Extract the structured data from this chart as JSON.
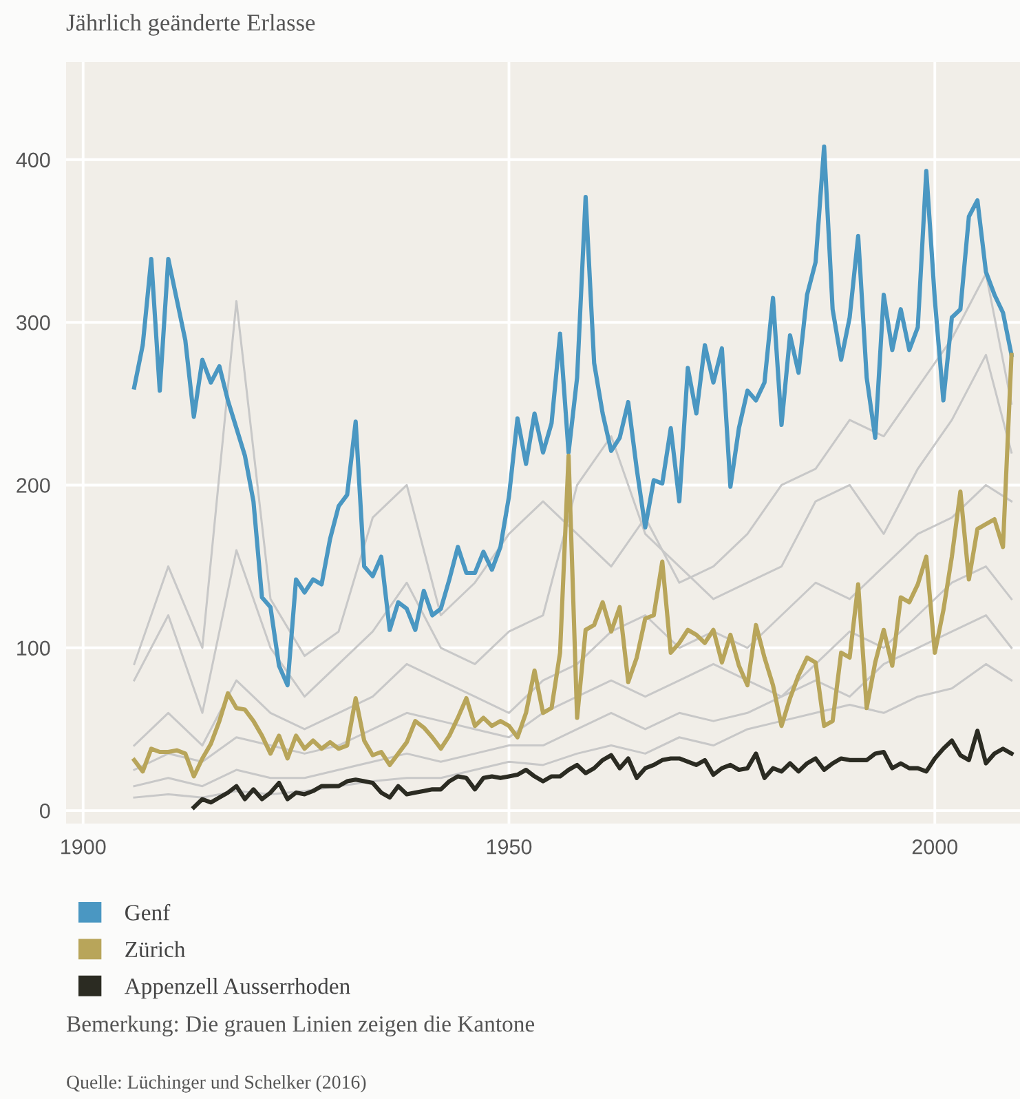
{
  "chart_data": {
    "type": "line",
    "title": "Jährlich geänderte Erlasse",
    "xlim": [
      1898,
      2010
    ],
    "xticks": [
      1900,
      1950,
      2000
    ],
    "ylim": [
      -8,
      460
    ],
    "yticks": [
      0,
      100,
      200,
      300,
      400
    ],
    "grid": true,
    "legend": "bottom",
    "marker": "none",
    "line_style": "solid",
    "series": [
      {
        "color": "#c8c8c8",
        "x": [
          1906,
          1910,
          1914,
          1918,
          1922,
          1926,
          1930,
          1934,
          1938,
          1942,
          1946,
          1950,
          1954,
          1958,
          1962,
          1966,
          1970,
          1974,
          1978,
          1982,
          1986,
          1990,
          1994,
          1998,
          2002,
          2006,
          2009
        ],
        "values": [
          90,
          150,
          100,
          313,
          130,
          95,
          110,
          180,
          200,
          120,
          140,
          170,
          190,
          170,
          150,
          180,
          140,
          150,
          170,
          200,
          210,
          240,
          230,
          260,
          290,
          330,
          250
        ]
      },
      {
        "color": "#c8c8c8",
        "x": [
          1906,
          1910,
          1914,
          1918,
          1922,
          1926,
          1930,
          1934,
          1938,
          1942,
          1946,
          1950,
          1954,
          1958,
          1962,
          1966,
          1970,
          1974,
          1978,
          1982,
          1986,
          1990,
          1994,
          1998,
          2002,
          2006,
          2009
        ],
        "values": [
          80,
          120,
          60,
          160,
          100,
          70,
          90,
          110,
          140,
          100,
          90,
          110,
          120,
          200,
          230,
          170,
          150,
          130,
          140,
          150,
          190,
          200,
          170,
          210,
          240,
          280,
          220
        ]
      },
      {
        "color": "#c8c8c8",
        "x": [
          1906,
          1910,
          1914,
          1918,
          1922,
          1926,
          1930,
          1934,
          1938,
          1942,
          1946,
          1950,
          1954,
          1958,
          1962,
          1966,
          1970,
          1974,
          1978,
          1982,
          1986,
          1990,
          1994,
          1998,
          2002,
          2006,
          2009
        ],
        "values": [
          40,
          60,
          40,
          80,
          60,
          50,
          60,
          70,
          90,
          80,
          70,
          60,
          80,
          90,
          110,
          120,
          100,
          110,
          100,
          120,
          140,
          130,
          150,
          170,
          180,
          200,
          190
        ]
      },
      {
        "color": "#c8c8c8",
        "x": [
          1906,
          1910,
          1914,
          1918,
          1922,
          1926,
          1930,
          1934,
          1938,
          1942,
          1946,
          1950,
          1954,
          1958,
          1962,
          1966,
          1970,
          1974,
          1978,
          1982,
          1986,
          1990,
          1994,
          1998,
          2002,
          2006,
          2009
        ],
        "values": [
          25,
          35,
          30,
          45,
          40,
          35,
          40,
          50,
          60,
          55,
          50,
          45,
          60,
          70,
          80,
          70,
          80,
          90,
          80,
          70,
          90,
          110,
          100,
          120,
          140,
          150,
          130
        ]
      },
      {
        "color": "#c8c8c8",
        "x": [
          1906,
          1910,
          1914,
          1918,
          1922,
          1926,
          1930,
          1934,
          1938,
          1942,
          1946,
          1950,
          1954,
          1958,
          1962,
          1966,
          1970,
          1974,
          1978,
          1982,
          1986,
          1990,
          1994,
          1998,
          2002,
          2006,
          2009
        ],
        "values": [
          15,
          20,
          15,
          25,
          20,
          20,
          25,
          30,
          35,
          30,
          35,
          40,
          40,
          50,
          60,
          50,
          60,
          55,
          60,
          70,
          80,
          70,
          90,
          100,
          110,
          120,
          100
        ]
      },
      {
        "color": "#c8c8c8",
        "x": [
          1906,
          1910,
          1914,
          1918,
          1922,
          1926,
          1930,
          1934,
          1938,
          1942,
          1946,
          1950,
          1954,
          1958,
          1962,
          1966,
          1970,
          1974,
          1978,
          1982,
          1986,
          1990,
          1994,
          1998,
          2002,
          2006,
          2009
        ],
        "values": [
          8,
          10,
          8,
          12,
          10,
          12,
          15,
          18,
          20,
          20,
          25,
          30,
          28,
          35,
          40,
          35,
          45,
          40,
          50,
          55,
          60,
          65,
          60,
          70,
          75,
          90,
          80
        ]
      },
      {
        "name": "Genf",
        "color": "#4a97c2",
        "x": [
          1906,
          1907,
          1908,
          1909,
          1910,
          1911,
          1912,
          1913,
          1914,
          1915,
          1916,
          1917,
          1918,
          1919,
          1920,
          1921,
          1922,
          1923,
          1924,
          1925,
          1926,
          1927,
          1928,
          1929,
          1930,
          1931,
          1932,
          1933,
          1934,
          1935,
          1936,
          1937,
          1938,
          1939,
          1940,
          1941,
          1942,
          1943,
          1944,
          1945,
          1946,
          1947,
          1948,
          1949,
          1950,
          1951,
          1952,
          1953,
          1954,
          1955,
          1956,
          1957,
          1958,
          1959,
          1960,
          1961,
          1962,
          1963,
          1964,
          1965,
          1966,
          1967,
          1968,
          1969,
          1970,
          1971,
          1972,
          1973,
          1974,
          1975,
          1976,
          1977,
          1978,
          1979,
          1980,
          1981,
          1982,
          1983,
          1984,
          1985,
          1986,
          1987,
          1988,
          1989,
          1990,
          1991,
          1992,
          1993,
          1994,
          1995,
          1996,
          1997,
          1998,
          1999,
          2000,
          2001,
          2002,
          2003,
          2004,
          2005,
          2006,
          2007,
          2008,
          2009
        ],
        "values": [
          260,
          286,
          339,
          258,
          339,
          314,
          289,
          242,
          277,
          263,
          273,
          252,
          235,
          218,
          190,
          131,
          125,
          89,
          77,
          142,
          134,
          142,
          139,
          167,
          187,
          194,
          239,
          150,
          144,
          156,
          111,
          128,
          124,
          111,
          135,
          120,
          124,
          142,
          162,
          146,
          146,
          159,
          148,
          162,
          193,
          241,
          213,
          244,
          220,
          238,
          293,
          220,
          266,
          377,
          275,
          244,
          221,
          229,
          251,
          210,
          174,
          203,
          201,
          235,
          190,
          272,
          244,
          286,
          263,
          284,
          199,
          235,
          258,
          252,
          263,
          315,
          237,
          292,
          269,
          317,
          337,
          408,
          308,
          277,
          303,
          353,
          266,
          229,
          317,
          283,
          308,
          283,
          297,
          393,
          314,
          252,
          303,
          308,
          365,
          375,
          331,
          317,
          306,
          280
        ]
      },
      {
        "name": "Zürich",
        "color": "#b8a55a",
        "x": [
          1906,
          1907,
          1908,
          1909,
          1910,
          1911,
          1912,
          1913,
          1914,
          1915,
          1916,
          1917,
          1918,
          1919,
          1920,
          1921,
          1922,
          1923,
          1924,
          1925,
          1926,
          1927,
          1928,
          1929,
          1930,
          1931,
          1932,
          1933,
          1934,
          1935,
          1936,
          1937,
          1938,
          1939,
          1940,
          1941,
          1942,
          1943,
          1944,
          1945,
          1946,
          1947,
          1948,
          1949,
          1950,
          1951,
          1952,
          1953,
          1954,
          1955,
          1956,
          1957,
          1958,
          1959,
          1960,
          1961,
          1962,
          1963,
          1964,
          1965,
          1966,
          1967,
          1968,
          1969,
          1970,
          1971,
          1972,
          1973,
          1974,
          1975,
          1976,
          1977,
          1978,
          1979,
          1980,
          1981,
          1982,
          1983,
          1984,
          1985,
          1986,
          1987,
          1988,
          1989,
          1990,
          1991,
          1992,
          1993,
          1994,
          1995,
          1996,
          1997,
          1998,
          1999,
          2000,
          2001,
          2002,
          2003,
          2004,
          2005,
          2006,
          2007,
          2008,
          2009
        ],
        "values": [
          31,
          24,
          38,
          36,
          36,
          37,
          35,
          21,
          32,
          41,
          55,
          72,
          63,
          62,
          55,
          46,
          35,
          46,
          32,
          46,
          38,
          43,
          38,
          42,
          38,
          40,
          69,
          43,
          34,
          36,
          28,
          35,
          42,
          55,
          51,
          45,
          38,
          46,
          57,
          69,
          52,
          57,
          52,
          55,
          52,
          45,
          60,
          86,
          60,
          63,
          97,
          218,
          57,
          111,
          114,
          128,
          110,
          125,
          79,
          94,
          118,
          120,
          153,
          97,
          103,
          111,
          108,
          103,
          111,
          91,
          108,
          89,
          77,
          114,
          94,
          77,
          52,
          69,
          83,
          94,
          91,
          52,
          55,
          97,
          94,
          139,
          63,
          91,
          111,
          89,
          131,
          128,
          139,
          156,
          97,
          123,
          156,
          196,
          142,
          173,
          176,
          179,
          162,
          280
        ]
      },
      {
        "name": "Appenzell Ausserrhoden",
        "color": "#2b2b22",
        "x": [
          1913,
          1914,
          1915,
          1916,
          1917,
          1918,
          1919,
          1920,
          1921,
          1922,
          1923,
          1924,
          1925,
          1926,
          1927,
          1928,
          1929,
          1930,
          1931,
          1932,
          1933,
          1934,
          1935,
          1936,
          1937,
          1938,
          1939,
          1940,
          1941,
          1942,
          1943,
          1944,
          1945,
          1946,
          1947,
          1948,
          1949,
          1950,
          1951,
          1952,
          1953,
          1954,
          1955,
          1956,
          1957,
          1958,
          1959,
          1960,
          1961,
          1962,
          1963,
          1964,
          1965,
          1966,
          1967,
          1968,
          1969,
          1970,
          1971,
          1972,
          1973,
          1974,
          1975,
          1976,
          1977,
          1978,
          1979,
          1980,
          1981,
          1982,
          1983,
          1984,
          1985,
          1986,
          1987,
          1988,
          1989,
          1990,
          1991,
          1992,
          1993,
          1994,
          1995,
          1996,
          1997,
          1998,
          1999,
          2000,
          2001,
          2002,
          2003,
          2004,
          2005,
          2006,
          2007,
          2008,
          2009
        ],
        "values": [
          2,
          7,
          5,
          8,
          11,
          15,
          7,
          13,
          7,
          11,
          17,
          7,
          11,
          10,
          12,
          15,
          15,
          15,
          18,
          19,
          18,
          17,
          11,
          8,
          15,
          10,
          11,
          12,
          13,
          13,
          18,
          21,
          20,
          13,
          20,
          21,
          20,
          21,
          22,
          25,
          21,
          18,
          21,
          21,
          25,
          28,
          23,
          26,
          31,
          34,
          26,
          32,
          20,
          26,
          28,
          31,
          32,
          32,
          30,
          28,
          31,
          22,
          26,
          28,
          25,
          26,
          35,
          20,
          26,
          24,
          29,
          24,
          29,
          32,
          25,
          29,
          32,
          31,
          31,
          31,
          35,
          36,
          26,
          29,
          26,
          26,
          24,
          32,
          38,
          43,
          34,
          31,
          49,
          29,
          35,
          38,
          35
        ]
      }
    ],
    "annotations": [
      "Bemerkung: Die grauen Linien zeigen die Kantone",
      "Quelle: Lüchinger und Schelker (2016)"
    ]
  }
}
